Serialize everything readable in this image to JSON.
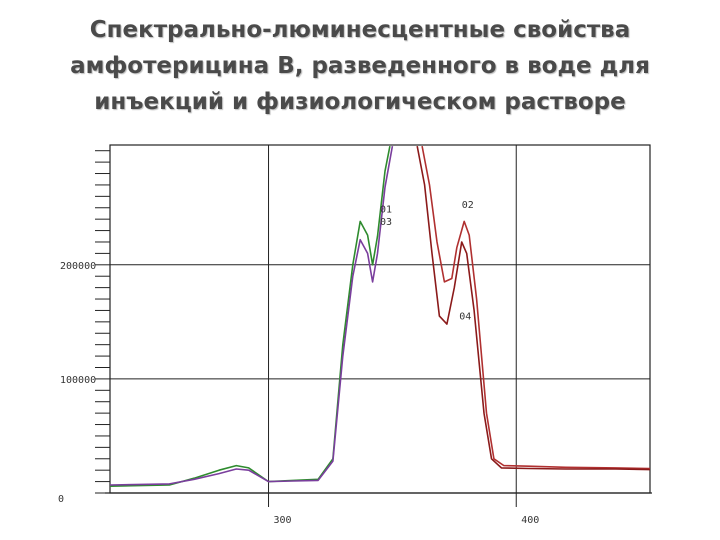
{
  "title_lines": [
    "Спектрально-люминесцентные свойства",
    "амфотерицина В, разведенного в воде для",
    "инъекций и физиологическом растворе"
  ],
  "chart_data": {
    "type": "line",
    "title": "",
    "xlabel": "",
    "ylabel": "",
    "xlim": [
      236,
      454
    ],
    "ylim": [
      0,
      305000
    ],
    "x_ticks": [
      300,
      400
    ],
    "y_ticks": [
      0,
      100000,
      200000
    ],
    "x_tick_labels": [
      "300",
      "400"
    ],
    "y_tick_labels": [
      "0",
      "100000",
      "200000"
    ],
    "grid": true,
    "series": [
      {
        "name": "01",
        "color": "#2e8b2e",
        "points": [
          [
            236,
            6000
          ],
          [
            260,
            7000
          ],
          [
            270,
            13000
          ],
          [
            280,
            20000
          ],
          [
            287,
            24000
          ],
          [
            292,
            22000
          ],
          [
            300,
            10000
          ],
          [
            310,
            11000
          ],
          [
            320,
            12000
          ],
          [
            326,
            30000
          ],
          [
            330,
            130000
          ],
          [
            334,
            200000
          ],
          [
            337,
            238000
          ],
          [
            340,
            226000
          ],
          [
            342,
            200000
          ],
          [
            344,
            225000
          ],
          [
            347,
            282000
          ],
          [
            349,
            304000
          ]
        ]
      },
      {
        "name": "02",
        "color": "#b03030",
        "points": [
          [
            362,
            304000
          ],
          [
            365,
            270000
          ],
          [
            368,
            220000
          ],
          [
            371,
            185000
          ],
          [
            374,
            188000
          ],
          [
            376,
            215000
          ],
          [
            379,
            238000
          ],
          [
            381,
            226000
          ],
          [
            384,
            170000
          ],
          [
            388,
            70000
          ],
          [
            391,
            30000
          ],
          [
            395,
            24000
          ],
          [
            405,
            23500
          ],
          [
            420,
            22500
          ],
          [
            440,
            22000
          ],
          [
            454,
            21500
          ]
        ]
      },
      {
        "name": "03",
        "color": "#7a3e9d",
        "points": [
          [
            236,
            7000
          ],
          [
            260,
            8000
          ],
          [
            270,
            12000
          ],
          [
            280,
            17000
          ],
          [
            287,
            21000
          ],
          [
            292,
            20000
          ],
          [
            300,
            10000
          ],
          [
            310,
            10500
          ],
          [
            320,
            11000
          ],
          [
            326,
            28000
          ],
          [
            330,
            120000
          ],
          [
            334,
            190000
          ],
          [
            337,
            222000
          ],
          [
            340,
            210000
          ],
          [
            342,
            185000
          ],
          [
            344,
            210000
          ],
          [
            347,
            268000
          ],
          [
            350,
            304000
          ]
        ]
      },
      {
        "name": "04",
        "color": "#8b1a1a",
        "points": [
          [
            360,
            304000
          ],
          [
            363,
            270000
          ],
          [
            366,
            210000
          ],
          [
            369,
            155000
          ],
          [
            372,
            148000
          ],
          [
            375,
            180000
          ],
          [
            378,
            220000
          ],
          [
            380,
            210000
          ],
          [
            383,
            160000
          ],
          [
            387,
            70000
          ],
          [
            390,
            30000
          ],
          [
            394,
            22000
          ],
          [
            405,
            21500
          ],
          [
            420,
            21000
          ],
          [
            440,
            21000
          ],
          [
            454,
            20500
          ]
        ]
      }
    ],
    "annotations": [
      {
        "text": "01",
        "x": 345,
        "y": 246000
      },
      {
        "text": "03",
        "x": 345,
        "y": 235000
      },
      {
        "text": "02",
        "x": 378,
        "y": 250000
      },
      {
        "text": "04",
        "x": 377,
        "y": 152000
      }
    ]
  }
}
